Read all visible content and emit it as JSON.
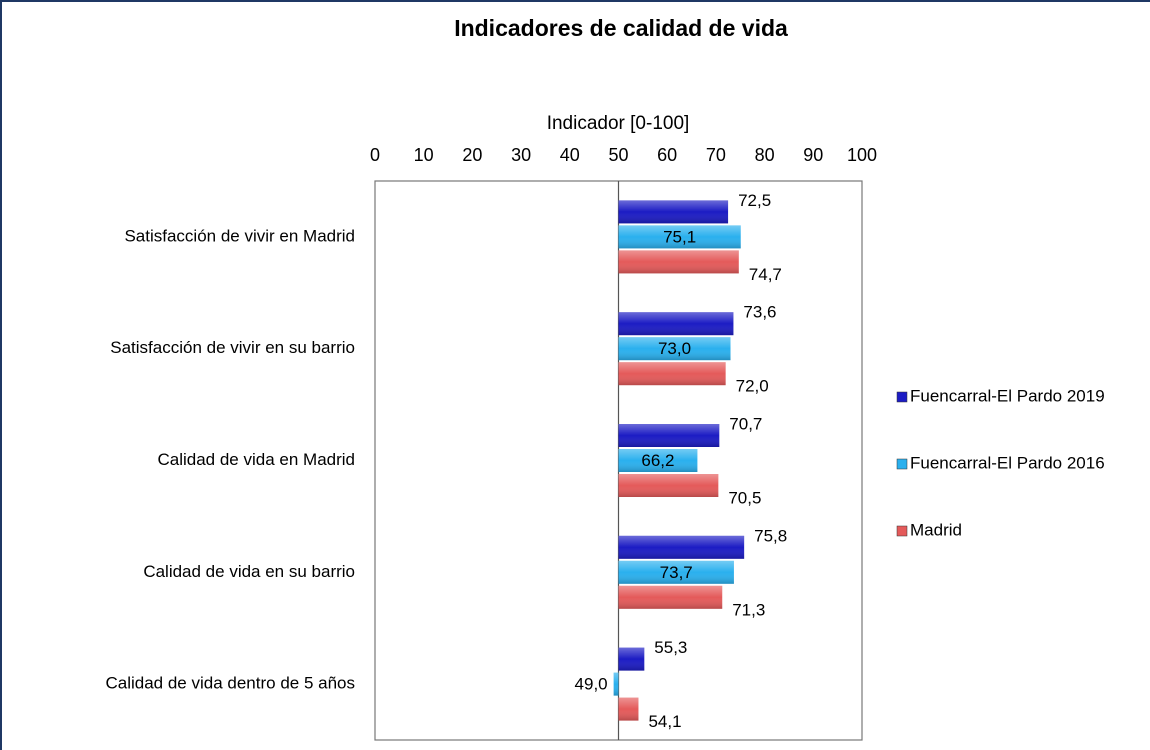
{
  "chart_data": {
    "type": "hbar",
    "title": "Indicadores de calidad de vida",
    "x_label": "Indicador  [0-100]",
    "categories": [
      "Satisfacción de vivir en Madrid",
      "Satisfacción de vivir en su barrio",
      "Calidad de vida en Madrid",
      "Calidad de vida en su barrio",
      "Calidad de vida dentro de 5 años"
    ],
    "series": [
      {
        "name": "Fuencarral-El Pardo 2019",
        "color": "#1c1cc4",
        "values": [
          72.5,
          73.6,
          70.7,
          75.8,
          55.3
        ],
        "value_labels": [
          "72,5",
          "73,6",
          "70,7",
          "75,8",
          "55,3"
        ]
      },
      {
        "name": "Fuencarral-El Pardo 2016",
        "color": "#2ab0ee",
        "values": [
          75.1,
          73.0,
          66.2,
          73.7,
          49.0
        ],
        "value_labels": [
          "75,1",
          "73,0",
          "66,2",
          "73,7",
          "49,0"
        ]
      },
      {
        "name": "Madrid",
        "color": "#e45a5a",
        "values": [
          74.7,
          72.0,
          70.5,
          71.3,
          54.1
        ],
        "value_labels": [
          "74,7",
          "72,0",
          "70,5",
          "71,3",
          "54,1"
        ]
      }
    ],
    "bar_base": 50,
    "xlim": [
      0,
      100
    ],
    "xticks": [
      0,
      10,
      20,
      30,
      40,
      50,
      60,
      70,
      80,
      90,
      100
    ],
    "grid": false,
    "legend": "right"
  }
}
